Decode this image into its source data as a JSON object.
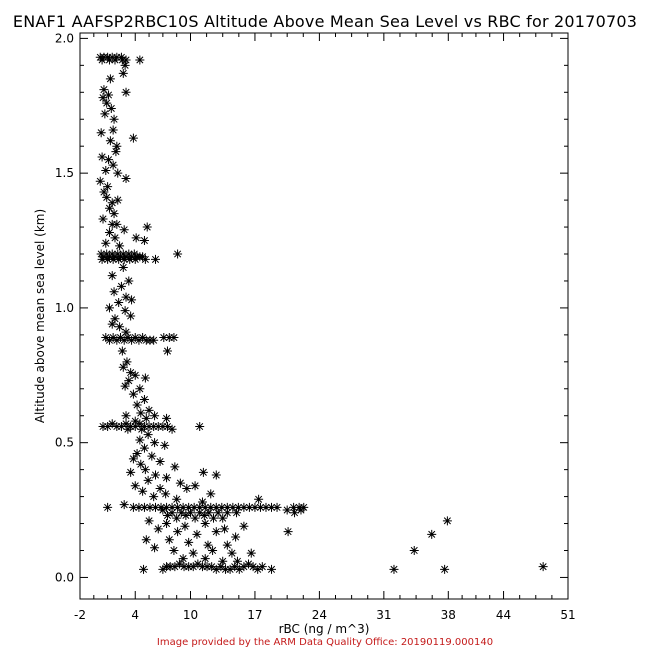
{
  "chart_data": {
    "type": "scatter",
    "title": "ENAF1 AAFSP2RBC10S Altitude Above Mean Sea Level vs RBC for 20170703",
    "xlabel": "rBC (ng / m^3)",
    "ylabel": "Altitude above mean sea level (km)",
    "xlim": [
      -2,
      51
    ],
    "ylim": [
      -0.08,
      2.02
    ],
    "x_ticks": [
      -2,
      4,
      10,
      17,
      24,
      31,
      38,
      44,
      51
    ],
    "y_ticks": [
      0.0,
      0.5,
      1.0,
      1.5,
      2.0
    ],
    "y_tick_labels": [
      "0.0",
      "0.5",
      "1.0",
      "1.5",
      "2.0"
    ],
    "marker": "asterisk",
    "grid": false,
    "series": [
      {
        "points": [
          [
            0.2,
            1.93
          ],
          [
            0.6,
            1.93
          ],
          [
            1.0,
            1.93
          ],
          [
            1.5,
            1.93
          ],
          [
            2.0,
            1.93
          ],
          [
            2.5,
            1.93
          ],
          [
            3.0,
            1.92
          ],
          [
            0.4,
            1.92
          ],
          [
            1.2,
            1.92
          ],
          [
            1.8,
            1.92
          ],
          [
            2.6,
            1.92
          ],
          [
            4.5,
            1.92
          ],
          [
            2.9,
            1.9
          ],
          [
            2.7,
            1.87
          ],
          [
            1.3,
            1.85
          ],
          [
            0.6,
            1.81
          ],
          [
            3.0,
            1.8
          ],
          [
            1.1,
            1.79
          ],
          [
            0.5,
            1.78
          ],
          [
            0.9,
            1.76
          ],
          [
            0.7,
            1.72
          ],
          [
            1.4,
            1.74
          ],
          [
            1.7,
            1.7
          ],
          [
            1.6,
            1.66
          ],
          [
            0.3,
            1.65
          ],
          [
            1.3,
            1.62
          ],
          [
            2.0,
            1.6
          ],
          [
            3.8,
            1.63
          ],
          [
            1.9,
            1.58
          ],
          [
            0.4,
            1.56
          ],
          [
            1.1,
            1.55
          ],
          [
            1.6,
            1.53
          ],
          [
            0.8,
            1.51
          ],
          [
            2.1,
            1.5
          ],
          [
            0.2,
            1.47
          ],
          [
            3.0,
            1.48
          ],
          [
            1.0,
            1.45
          ],
          [
            0.6,
            1.43
          ],
          [
            0.9,
            1.41
          ],
          [
            1.5,
            1.39
          ],
          [
            2.1,
            1.4
          ],
          [
            1.2,
            1.37
          ],
          [
            1.7,
            1.35
          ],
          [
            0.5,
            1.33
          ],
          [
            1.5,
            1.31
          ],
          [
            2.0,
            1.31
          ],
          [
            1.2,
            1.28
          ],
          [
            2.8,
            1.29
          ],
          [
            4.1,
            1.26
          ],
          [
            5.3,
            1.3
          ],
          [
            1.8,
            1.26
          ],
          [
            0.8,
            1.24
          ],
          [
            2.3,
            1.23
          ],
          [
            5.0,
            1.25
          ],
          [
            0.3,
            1.2
          ],
          [
            0.6,
            1.19
          ],
          [
            0.9,
            1.2
          ],
          [
            1.2,
            1.19
          ],
          [
            1.5,
            1.2
          ],
          [
            1.8,
            1.19
          ],
          [
            2.1,
            1.2
          ],
          [
            2.4,
            1.19
          ],
          [
            2.7,
            1.2
          ],
          [
            3.0,
            1.19
          ],
          [
            3.3,
            1.2
          ],
          [
            3.6,
            1.19
          ],
          [
            3.9,
            1.2
          ],
          [
            4.2,
            1.19
          ],
          [
            4.5,
            1.19
          ],
          [
            4.8,
            1.19
          ],
          [
            5.1,
            1.18
          ],
          [
            0.4,
            1.18
          ],
          [
            1.0,
            1.18
          ],
          [
            1.6,
            1.18
          ],
          [
            2.2,
            1.18
          ],
          [
            2.8,
            1.18
          ],
          [
            3.4,
            1.18
          ],
          [
            4.0,
            1.18
          ],
          [
            8.6,
            1.2
          ],
          [
            6.2,
            1.18
          ],
          [
            2.7,
            1.15
          ],
          [
            1.5,
            1.12
          ],
          [
            3.3,
            1.1
          ],
          [
            2.5,
            1.08
          ],
          [
            1.7,
            1.06
          ],
          [
            3.0,
            1.04
          ],
          [
            2.2,
            1.02
          ],
          [
            3.6,
            1.03
          ],
          [
            1.2,
            1.0
          ],
          [
            2.9,
            0.99
          ],
          [
            3.5,
            0.97
          ],
          [
            1.8,
            0.96
          ],
          [
            2.3,
            0.93
          ],
          [
            1.5,
            0.94
          ],
          [
            3.0,
            0.91
          ],
          [
            0.8,
            0.89
          ],
          [
            1.2,
            0.88
          ],
          [
            1.6,
            0.89
          ],
          [
            2.0,
            0.88
          ],
          [
            2.4,
            0.89
          ],
          [
            2.8,
            0.88
          ],
          [
            3.2,
            0.89
          ],
          [
            3.6,
            0.88
          ],
          [
            4.0,
            0.89
          ],
          [
            4.4,
            0.88
          ],
          [
            4.8,
            0.89
          ],
          [
            5.2,
            0.88
          ],
          [
            5.6,
            0.88
          ],
          [
            6.0,
            0.88
          ],
          [
            7.1,
            0.89
          ],
          [
            7.7,
            0.89
          ],
          [
            8.2,
            0.89
          ],
          [
            7.5,
            0.84
          ],
          [
            2.6,
            0.84
          ],
          [
            3.1,
            0.8
          ],
          [
            2.7,
            0.78
          ],
          [
            3.5,
            0.76
          ],
          [
            4.0,
            0.75
          ],
          [
            3.3,
            0.73
          ],
          [
            5.1,
            0.74
          ],
          [
            2.9,
            0.71
          ],
          [
            4.5,
            0.7
          ],
          [
            3.8,
            0.68
          ],
          [
            5.0,
            0.66
          ],
          [
            4.2,
            0.64
          ],
          [
            5.5,
            0.62
          ],
          [
            4.6,
            0.61
          ],
          [
            6.1,
            0.6
          ],
          [
            3.0,
            0.6
          ],
          [
            4.0,
            0.58
          ],
          [
            5.2,
            0.59
          ],
          [
            7.4,
            0.59
          ],
          [
            0.5,
            0.56
          ],
          [
            1.0,
            0.56
          ],
          [
            1.5,
            0.57
          ],
          [
            2.0,
            0.56
          ],
          [
            2.5,
            0.56
          ],
          [
            3.0,
            0.57
          ],
          [
            3.5,
            0.56
          ],
          [
            4.0,
            0.56
          ],
          [
            4.5,
            0.57
          ],
          [
            5.0,
            0.56
          ],
          [
            5.5,
            0.56
          ],
          [
            6.0,
            0.56
          ],
          [
            6.5,
            0.56
          ],
          [
            7.0,
            0.56
          ],
          [
            7.5,
            0.56
          ],
          [
            8.0,
            0.55
          ],
          [
            3.2,
            0.55
          ],
          [
            4.7,
            0.55
          ],
          [
            11.0,
            0.56
          ],
          [
            5.4,
            0.53
          ],
          [
            4.5,
            0.51
          ],
          [
            6.1,
            0.5
          ],
          [
            5.0,
            0.48
          ],
          [
            7.2,
            0.49
          ],
          [
            4.2,
            0.46
          ],
          [
            5.8,
            0.45
          ],
          [
            3.8,
            0.44
          ],
          [
            6.7,
            0.43
          ],
          [
            4.6,
            0.42
          ],
          [
            5.1,
            0.4
          ],
          [
            8.3,
            0.41
          ],
          [
            3.5,
            0.39
          ],
          [
            6.2,
            0.38
          ],
          [
            7.4,
            0.37
          ],
          [
            11.4,
            0.39
          ],
          [
            12.8,
            0.38
          ],
          [
            5.4,
            0.36
          ],
          [
            4.0,
            0.34
          ],
          [
            6.7,
            0.33
          ],
          [
            8.9,
            0.35
          ],
          [
            10.5,
            0.34
          ],
          [
            4.8,
            0.32
          ],
          [
            7.3,
            0.31
          ],
          [
            9.6,
            0.33
          ],
          [
            12.2,
            0.31
          ],
          [
            6.0,
            0.3
          ],
          [
            8.5,
            0.29
          ],
          [
            11.3,
            0.28
          ],
          [
            1.0,
            0.26
          ],
          [
            2.8,
            0.27
          ],
          [
            3.8,
            0.26
          ],
          [
            4.4,
            0.26
          ],
          [
            5.0,
            0.26
          ],
          [
            5.6,
            0.26
          ],
          [
            6.2,
            0.26
          ],
          [
            6.8,
            0.26
          ],
          [
            7.4,
            0.26
          ],
          [
            8.0,
            0.26
          ],
          [
            8.6,
            0.26
          ],
          [
            9.2,
            0.26
          ],
          [
            9.8,
            0.26
          ],
          [
            10.4,
            0.26
          ],
          [
            11.0,
            0.26
          ],
          [
            11.6,
            0.26
          ],
          [
            12.2,
            0.26
          ],
          [
            12.8,
            0.26
          ],
          [
            13.4,
            0.26
          ],
          [
            14.0,
            0.26
          ],
          [
            14.6,
            0.26
          ],
          [
            15.2,
            0.26
          ],
          [
            15.8,
            0.26
          ],
          [
            16.4,
            0.26
          ],
          [
            17.0,
            0.26
          ],
          [
            17.6,
            0.26
          ],
          [
            18.2,
            0.26
          ],
          [
            18.8,
            0.26
          ],
          [
            19.4,
            0.26
          ],
          [
            20.5,
            0.25
          ],
          [
            21.2,
            0.26
          ],
          [
            21.8,
            0.26
          ],
          [
            22.3,
            0.26
          ],
          [
            17.4,
            0.29
          ],
          [
            7.0,
            0.25
          ],
          [
            8.0,
            0.24
          ],
          [
            9.0,
            0.24
          ],
          [
            10.0,
            0.24
          ],
          [
            11.0,
            0.24
          ],
          [
            12.0,
            0.24
          ],
          [
            13.0,
            0.24
          ],
          [
            14.0,
            0.24
          ],
          [
            15.0,
            0.24
          ],
          [
            7.5,
            0.23
          ],
          [
            8.5,
            0.22
          ],
          [
            9.5,
            0.23
          ],
          [
            10.5,
            0.22
          ],
          [
            11.5,
            0.23
          ],
          [
            12.5,
            0.22
          ],
          [
            13.5,
            0.22
          ],
          [
            21.3,
            0.24
          ],
          [
            22.0,
            0.25
          ],
          [
            20.6,
            0.17
          ],
          [
            5.5,
            0.21
          ],
          [
            7.4,
            0.2
          ],
          [
            9.4,
            0.19
          ],
          [
            11.6,
            0.2
          ],
          [
            13.7,
            0.18
          ],
          [
            15.8,
            0.19
          ],
          [
            6.5,
            0.18
          ],
          [
            8.6,
            0.17
          ],
          [
            10.7,
            0.16
          ],
          [
            12.8,
            0.17
          ],
          [
            14.9,
            0.15
          ],
          [
            5.2,
            0.14
          ],
          [
            7.7,
            0.14
          ],
          [
            9.8,
            0.13
          ],
          [
            11.9,
            0.12
          ],
          [
            14.0,
            0.12
          ],
          [
            6.1,
            0.11
          ],
          [
            8.2,
            0.1
          ],
          [
            10.3,
            0.09
          ],
          [
            12.4,
            0.1
          ],
          [
            14.5,
            0.09
          ],
          [
            16.6,
            0.09
          ],
          [
            9.2,
            0.07
          ],
          [
            11.6,
            0.07
          ],
          [
            13.5,
            0.06
          ],
          [
            15.1,
            0.06
          ],
          [
            4.9,
            0.03
          ],
          [
            7.0,
            0.03
          ],
          [
            7.4,
            0.04
          ],
          [
            7.8,
            0.04
          ],
          [
            8.3,
            0.04
          ],
          [
            8.8,
            0.05
          ],
          [
            9.3,
            0.04
          ],
          [
            9.8,
            0.04
          ],
          [
            10.3,
            0.04
          ],
          [
            10.8,
            0.05
          ],
          [
            11.3,
            0.04
          ],
          [
            11.8,
            0.04
          ],
          [
            12.3,
            0.04
          ],
          [
            12.8,
            0.03
          ],
          [
            13.3,
            0.04
          ],
          [
            13.8,
            0.03
          ],
          [
            14.3,
            0.03
          ],
          [
            14.8,
            0.04
          ],
          [
            15.3,
            0.03
          ],
          [
            15.8,
            0.04
          ],
          [
            16.3,
            0.05
          ],
          [
            16.8,
            0.04
          ],
          [
            17.3,
            0.03
          ],
          [
            17.8,
            0.04
          ],
          [
            18.8,
            0.03
          ],
          [
            32.1,
            0.03
          ],
          [
            34.3,
            0.1
          ],
          [
            36.2,
            0.16
          ],
          [
            37.6,
            0.03
          ],
          [
            37.9,
            0.21
          ],
          [
            48.3,
            0.04
          ]
        ]
      }
    ]
  },
  "footer": {
    "credit": "Image provided by the ARM Data Quality Office: 20190119.000140"
  }
}
